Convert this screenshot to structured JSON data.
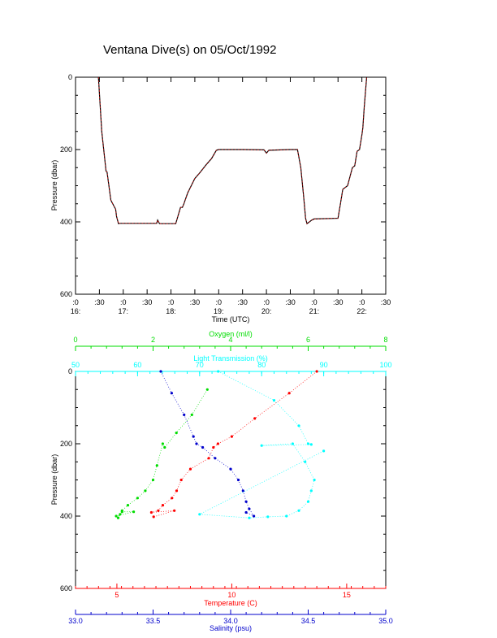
{
  "page": {
    "title": "Ventana Dive(s) on 05/Oct/1992"
  },
  "colors": {
    "pressure": "#000000",
    "pressure_overlay": "#ff0000",
    "oxygen": "#00dd00",
    "transmission": "#00ffff",
    "temperature": "#ff0000",
    "salinity": "#0000cc"
  },
  "chart_data": [
    {
      "type": "line",
      "title": "Ventana Dive(s) on 05/Oct/1992",
      "xlabel": "Time (UTC)",
      "ylabel": "Pressure (dbar)",
      "x_tick_labels": [
        {
          "top": ":0",
          "bottom": "16:"
        },
        {
          "top": ":30",
          "bottom": ""
        },
        {
          "top": ":0",
          "bottom": "17:"
        },
        {
          "top": ":30",
          "bottom": ""
        },
        {
          "top": ":0",
          "bottom": "18:"
        },
        {
          "top": ":30",
          "bottom": ""
        },
        {
          "top": ":0",
          "bottom": "19:"
        },
        {
          "top": ":30",
          "bottom": ""
        },
        {
          "top": ":0",
          "bottom": "20:"
        },
        {
          "top": ":30",
          "bottom": ""
        },
        {
          "top": ":0",
          "bottom": "21:"
        },
        {
          "top": ":30",
          "bottom": ""
        },
        {
          "top": ":0",
          "bottom": "22:"
        },
        {
          "top": ":30",
          "bottom": ""
        }
      ],
      "xlim": [
        16.0,
        22.5
      ],
      "ylim": [
        600,
        0
      ],
      "y_tick_labels": [
        "0",
        "200",
        "400",
        "600"
      ],
      "y_ticks": [
        0,
        200,
        400,
        600
      ],
      "series": [
        {
          "x": [
            16.48,
            16.55,
            16.64,
            16.66,
            16.7,
            16.74,
            16.8,
            16.84,
            16.86,
            16.9,
            16.92,
            17.0,
            17.5,
            17.7,
            17.72,
            17.76,
            18.0,
            18.1,
            18.2,
            18.24,
            18.27,
            18.35,
            18.5,
            18.6,
            18.75,
            18.85,
            18.95,
            19.0,
            19.5,
            19.95,
            20.0,
            20.05,
            20.5,
            20.65,
            20.72,
            20.78,
            20.82,
            20.85,
            20.9,
            20.95,
            21.0,
            21.5,
            21.55,
            21.6,
            21.7,
            21.8,
            21.85,
            21.9,
            21.95,
            22.0,
            22.02,
            22.05,
            22.1
          ],
          "y": [
            0,
            150,
            260,
            262,
            300,
            340,
            355,
            365,
            385,
            405,
            404,
            404,
            404,
            404,
            395,
            405,
            405,
            405,
            360,
            360,
            350,
            320,
            280,
            265,
            240,
            225,
            202,
            200,
            200,
            201,
            210,
            202,
            200,
            200,
            250,
            330,
            390,
            405,
            400,
            395,
            392,
            390,
            350,
            310,
            300,
            250,
            245,
            205,
            200,
            160,
            140,
            80,
            0
          ]
        }
      ]
    },
    {
      "type": "scatter",
      "ylabel": "Pressure (dbar)",
      "ylim": [
        600,
        0
      ],
      "y_tick_labels": [
        "0",
        "200",
        "400",
        "600"
      ],
      "y_ticks": [
        0,
        200,
        400,
        600
      ],
      "axes": {
        "oxygen": {
          "label": "Oxygen (ml/l)",
          "range": [
            0,
            8
          ],
          "ticks": [
            0,
            2,
            4,
            6,
            8
          ],
          "tick_labels": [
            "0",
            "2",
            "4",
            "6",
            "8"
          ]
        },
        "transmission": {
          "label": "Light Transmission (%)",
          "range": [
            50,
            100
          ],
          "ticks": [
            50,
            60,
            70,
            80,
            90,
            100
          ],
          "tick_labels": [
            "50",
            "60",
            "70",
            "80",
            "90",
            "100"
          ]
        },
        "temperature": {
          "label": "Temperature (C)",
          "range": [
            3.2,
            16.7
          ],
          "ticks": [
            5,
            10,
            15
          ],
          "tick_labels": [
            "5",
            "10",
            "15"
          ]
        },
        "salinity": {
          "label": "Salinity (psu)",
          "range": [
            33.0,
            35.0
          ],
          "ticks": [
            33.0,
            33.5,
            34.0,
            34.5,
            35.0
          ],
          "tick_labels": [
            "33.0",
            "33.5",
            "34.0",
            "34.5",
            "35.0"
          ]
        }
      },
      "series": [
        {
          "variable": "oxygen",
          "x": [
            3.4,
            3.0,
            2.6,
            2.3,
            2.25,
            2.1,
            2.0,
            1.8,
            1.6,
            1.35,
            1.2,
            1.15,
            1.1,
            1.2,
            1.5,
            1.05
          ],
          "y": [
            50,
            120,
            170,
            210,
            200,
            260,
            300,
            330,
            350,
            370,
            385,
            395,
            405,
            388,
            388,
            400
          ]
        },
        {
          "variable": "transmission",
          "x": [
            73.0,
            82.0,
            86.0,
            87.5,
            88.0,
            80.0,
            85.0,
            87.0,
            88.5,
            88.0,
            87.5,
            86.0,
            84.0,
            81.0,
            78.0,
            70.0,
            90.0
          ],
          "y": [
            0,
            80,
            150,
            200,
            202,
            205,
            200,
            250,
            300,
            330,
            360,
            385,
            400,
            402,
            405,
            395,
            220
          ]
        },
        {
          "variable": "temperature",
          "x": [
            13.7,
            12.5,
            11.0,
            10.0,
            9.4,
            9.2,
            9.0,
            8.2,
            7.8,
            7.6,
            7.4,
            7.0,
            6.8,
            6.5,
            7.5,
            6.6
          ],
          "y": [
            0,
            60,
            130,
            180,
            200,
            210,
            240,
            270,
            300,
            330,
            350,
            370,
            385,
            390,
            385,
            402
          ]
        },
        {
          "variable": "salinity",
          "x": [
            33.55,
            33.62,
            33.7,
            33.76,
            33.78,
            33.82,
            33.9,
            34.0,
            34.05,
            34.08,
            34.1,
            34.12,
            34.15,
            34.1
          ],
          "y": [
            0,
            60,
            120,
            180,
            200,
            210,
            240,
            270,
            300,
            330,
            360,
            380,
            400,
            390
          ]
        }
      ]
    }
  ]
}
